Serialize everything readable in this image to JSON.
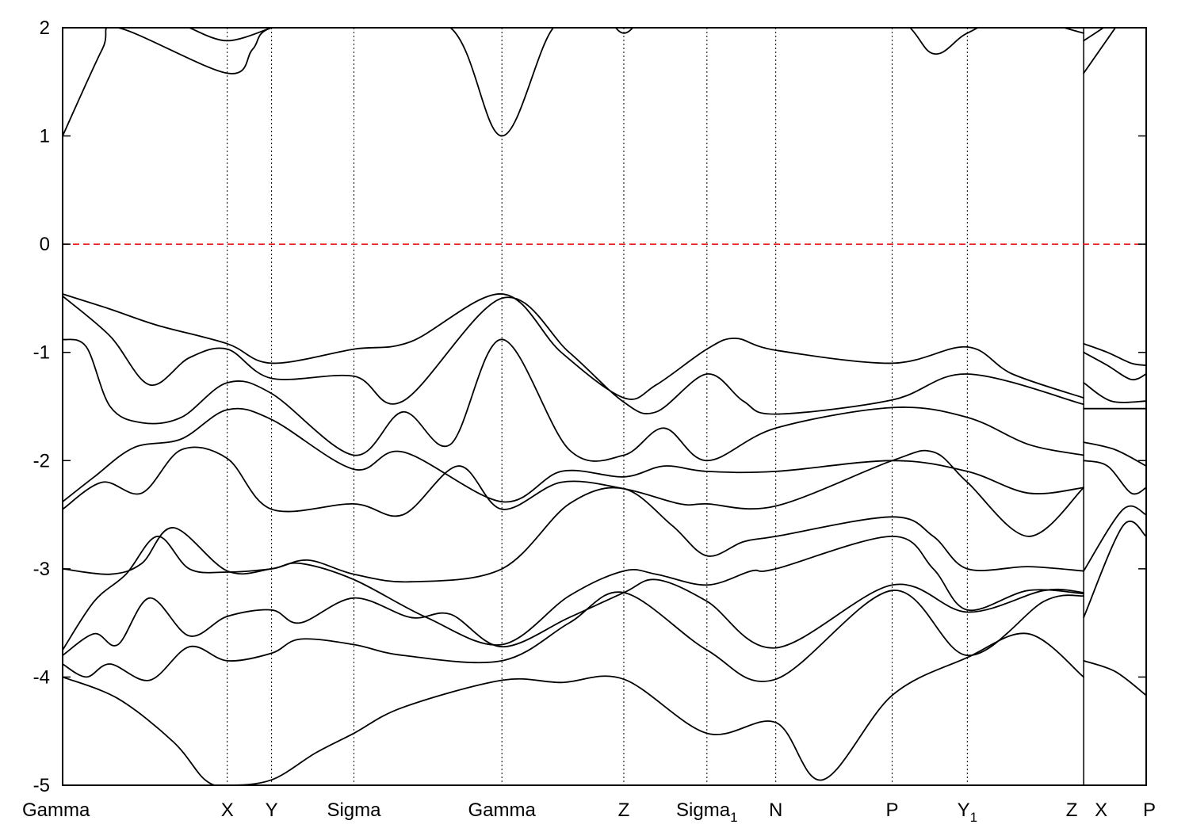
{
  "chart_data": {
    "type": "line",
    "title": "",
    "xlabel": "",
    "ylabel": "",
    "ylim": [
      -5,
      2
    ],
    "y_ticks": [
      2,
      1,
      0,
      -1,
      -2,
      -3,
      -4,
      -5
    ],
    "grid": "vertical dotted lines at high-symmetry points",
    "legend": "none",
    "colors": {
      "bands": "#000000",
      "fermi_level": "#e41a1c",
      "grid": "#000000"
    },
    "xlim": [
      0,
      13.69
    ],
    "high_symmetry_points": [
      {
        "label": "Gamma",
        "sub": "",
        "x": 0.0
      },
      {
        "label": "X",
        "sub": "",
        "x": 2.08
      },
      {
        "label": "Y",
        "sub": "",
        "x": 2.64
      },
      {
        "label": "Sigma",
        "sub": "",
        "x": 3.68
      },
      {
        "label": "Gamma",
        "sub": "",
        "x": 5.55
      },
      {
        "label": "Z",
        "sub": "",
        "x": 7.09
      },
      {
        "label": "Sigma",
        "sub": "1",
        "x": 8.14
      },
      {
        "label": "N",
        "sub": "",
        "x": 9.01
      },
      {
        "label": "P",
        "sub": "",
        "x": 10.48
      },
      {
        "label": "Y",
        "sub": "1",
        "x": 11.43
      },
      {
        "label": "Z",
        "sub": "",
        "x": 12.9
      },
      {
        "label": "X",
        "sub": "",
        "x": 12.9
      },
      {
        "label": "P",
        "sub": "",
        "x": 13.69
      }
    ],
    "path_break_after_index": 10,
    "fermi_level": 0,
    "series": [
      {
        "x": [
          0,
          0.5,
          0.7,
          2.08,
          2.4,
          2.64,
          3.68,
          4.9,
          5.55,
          6.2,
          6.8,
          7.09,
          7.4,
          8.14,
          9.01,
          10.48,
          11.0,
          11.43,
          12.0,
          12.9
        ],
        "y": [
          1.0,
          1.8,
          2.0,
          1.58,
          1.8,
          2.0,
          2.1,
          2.0,
          1.0,
          2.0,
          2.1,
          1.95,
          2.1,
          2.2,
          2.2,
          2.1,
          1.76,
          1.95,
          2.1,
          1.95
        ]
      },
      {
        "x": [
          1.6,
          2.08,
          2.64
        ],
        "y": [
          2.0,
          1.88,
          2.0
        ]
      },
      {
        "x": [
          12.9,
          13.3
        ],
        "y": [
          1.58,
          2.0
        ]
      },
      {
        "x": [
          12.9,
          13.15
        ],
        "y": [
          1.88,
          2.0
        ]
      },
      {
        "x": [
          0,
          0.6,
          1.2,
          2.08,
          2.64,
          3.68,
          4.4,
          5.55,
          6.3,
          7.09,
          7.5,
          8.14,
          8.5,
          9.01,
          10.48,
          11.43,
          12.0,
          12.9
        ],
        "y": [
          -0.46,
          -0.6,
          -0.75,
          -0.92,
          -1.1,
          -0.97,
          -0.9,
          -0.46,
          -1.0,
          -1.42,
          -1.3,
          -0.97,
          -0.87,
          -0.98,
          -1.1,
          -0.95,
          -1.2,
          -1.42
        ]
      },
      {
        "x": [
          0,
          0.6,
          1.1,
          1.6,
          2.08,
          2.64,
          3.68,
          4.3,
          5.55,
          6.4,
          7.09,
          7.5,
          8.14,
          8.6,
          9.01,
          10.48,
          11.43,
          12.9
        ],
        "y": [
          -0.48,
          -0.85,
          -1.3,
          -1.05,
          -0.97,
          -1.24,
          -1.22,
          -1.45,
          -0.5,
          -1.0,
          -1.46,
          -1.55,
          -1.2,
          -1.45,
          -1.57,
          -1.44,
          -1.2,
          -1.48
        ]
      },
      {
        "x": [
          0,
          0.3,
          0.6,
          1.0,
          1.5,
          2.08,
          2.64,
          3.68,
          4.3,
          4.9,
          5.55,
          6.4,
          7.09,
          7.6,
          8.14,
          9.01,
          10.48,
          11.43,
          12.2,
          12.9
        ],
        "y": [
          -0.88,
          -0.95,
          -1.5,
          -1.65,
          -1.6,
          -1.28,
          -1.38,
          -1.95,
          -1.55,
          -1.85,
          -0.88,
          -1.9,
          -1.95,
          -1.7,
          -2.0,
          -1.7,
          -1.51,
          -1.6,
          -1.85,
          -1.95
        ]
      },
      {
        "x": [
          0,
          0.4,
          0.9,
          1.5,
          2.08,
          2.64,
          3.68,
          4.3,
          5.55,
          6.3,
          7.09,
          7.6,
          8.14,
          9.01,
          10.48,
          11.43,
          12.2,
          12.9
        ],
        "y": [
          -2.38,
          -2.15,
          -1.88,
          -1.8,
          -1.53,
          -1.62,
          -2.08,
          -1.92,
          -2.38,
          -2.1,
          -2.15,
          -2.05,
          -2.1,
          -2.1,
          -2.0,
          -2.1,
          -2.3,
          -2.25
        ]
      },
      {
        "x": [
          0,
          0.5,
          1.0,
          1.5,
          2.08,
          2.64,
          3.68,
          4.3,
          5.0,
          5.55,
          6.3,
          7.09,
          7.8,
          8.14,
          9.01,
          10.48,
          11.0,
          11.43,
          12.2,
          12.9
        ],
        "y": [
          -2.45,
          -2.2,
          -2.3,
          -1.9,
          -1.98,
          -2.45,
          -2.4,
          -2.5,
          -2.05,
          -2.45,
          -2.2,
          -2.26,
          -2.4,
          -2.4,
          -2.42,
          -2.0,
          -1.92,
          -2.2,
          -2.7,
          -2.25
        ]
      },
      {
        "x": [
          0,
          0.6,
          1.0,
          1.4,
          2.08,
          2.64,
          3.1,
          3.68,
          4.4,
          5.55,
          6.4,
          7.09,
          7.7,
          8.14,
          8.6,
          9.01,
          10.48,
          11.0,
          11.43,
          12.2,
          12.9
        ],
        "y": [
          -3.0,
          -3.05,
          -2.95,
          -2.62,
          -3.02,
          -3.0,
          -2.92,
          -3.05,
          -3.12,
          -3.0,
          -2.4,
          -2.26,
          -2.6,
          -2.88,
          -2.75,
          -2.7,
          -2.52,
          -2.7,
          -3.0,
          -2.98,
          -3.02
        ]
      },
      {
        "x": [
          0,
          0.4,
          0.8,
          1.2,
          1.6,
          2.08,
          2.64,
          3.0,
          3.68,
          4.6,
          5.55,
          6.4,
          7.09,
          7.5,
          8.14,
          8.7,
          9.01,
          10.48,
          11.0,
          11.43,
          12.2,
          12.9
        ],
        "y": [
          -3.75,
          -3.3,
          -3.05,
          -2.7,
          -3.0,
          -3.03,
          -3.0,
          -2.95,
          -3.1,
          -3.45,
          -3.7,
          -3.25,
          -3.02,
          -3.05,
          -3.15,
          -3.02,
          -3.0,
          -2.7,
          -3.0,
          -3.38,
          -3.2,
          -3.23
        ]
      },
      {
        "x": [
          0,
          0.4,
          0.7,
          1.1,
          1.6,
          2.08,
          2.64,
          3.0,
          3.68,
          4.4,
          4.9,
          5.55,
          6.4,
          7.09,
          7.5,
          8.14,
          9.01,
          10.48,
          11.43,
          12.4,
          12.9
        ],
        "y": [
          -3.8,
          -3.6,
          -3.7,
          -3.27,
          -3.62,
          -3.44,
          -3.38,
          -3.5,
          -3.27,
          -3.45,
          -3.42,
          -3.72,
          -3.45,
          -3.22,
          -3.1,
          -3.3,
          -3.73,
          -3.15,
          -3.4,
          -3.2,
          -3.22
        ]
      },
      {
        "x": [
          0,
          0.3,
          0.6,
          1.1,
          1.6,
          2.08,
          2.64,
          3.0,
          3.68,
          4.3,
          5.55,
          6.4,
          7.09,
          8.14,
          9.01,
          10.48,
          11.43,
          12.4,
          12.9
        ],
        "y": [
          -3.88,
          -4.0,
          -3.88,
          -4.03,
          -3.72,
          -3.85,
          -3.78,
          -3.65,
          -3.7,
          -3.8,
          -3.85,
          -3.5,
          -3.22,
          -3.75,
          -4.02,
          -3.2,
          -3.8,
          -3.3,
          -3.25
        ]
      },
      {
        "x": [
          0,
          0.7,
          1.4,
          1.8,
          2.08,
          2.64,
          3.2,
          3.68,
          4.3,
          5.55,
          6.3,
          7.09,
          8.14,
          9.01,
          9.6,
          10.48,
          11.43,
          12.2,
          12.9
        ],
        "y": [
          -4.0,
          -4.2,
          -4.6,
          -4.95,
          -5.0,
          -4.95,
          -4.7,
          -4.52,
          -4.28,
          -4.03,
          -4.05,
          -4.02,
          -4.52,
          -4.42,
          -4.95,
          -4.17,
          -3.82,
          -3.6,
          -4.0
        ]
      },
      {
        "x": [
          12.9,
          13.2,
          13.5,
          13.69
        ],
        "y": [
          -0.92,
          -1.0,
          -1.1,
          -1.12
        ]
      },
      {
        "x": [
          12.9,
          13.2,
          13.5,
          13.69
        ],
        "y": [
          -1.0,
          -1.12,
          -1.25,
          -1.2
        ]
      },
      {
        "x": [
          12.9,
          13.25,
          13.69
        ],
        "y": [
          -1.28,
          -1.45,
          -1.45
        ]
      },
      {
        "x": [
          12.9,
          13.2,
          13.69
        ],
        "y": [
          -1.52,
          -1.52,
          -1.52
        ]
      },
      {
        "x": [
          12.9,
          13.3,
          13.69
        ],
        "y": [
          -1.83,
          -1.9,
          -2.05
        ]
      },
      {
        "x": [
          12.9,
          13.2,
          13.5,
          13.69
        ],
        "y": [
          -2.0,
          -2.05,
          -2.3,
          -2.25
        ]
      },
      {
        "x": [
          12.9,
          13.4,
          13.69
        ],
        "y": [
          -3.02,
          -2.45,
          -2.5
        ]
      },
      {
        "x": [
          12.9,
          13.4,
          13.69
        ],
        "y": [
          -3.45,
          -2.6,
          -2.7
        ]
      },
      {
        "x": [
          12.9,
          13.3,
          13.69
        ],
        "y": [
          -3.85,
          -3.95,
          -4.17
        ]
      }
    ]
  }
}
